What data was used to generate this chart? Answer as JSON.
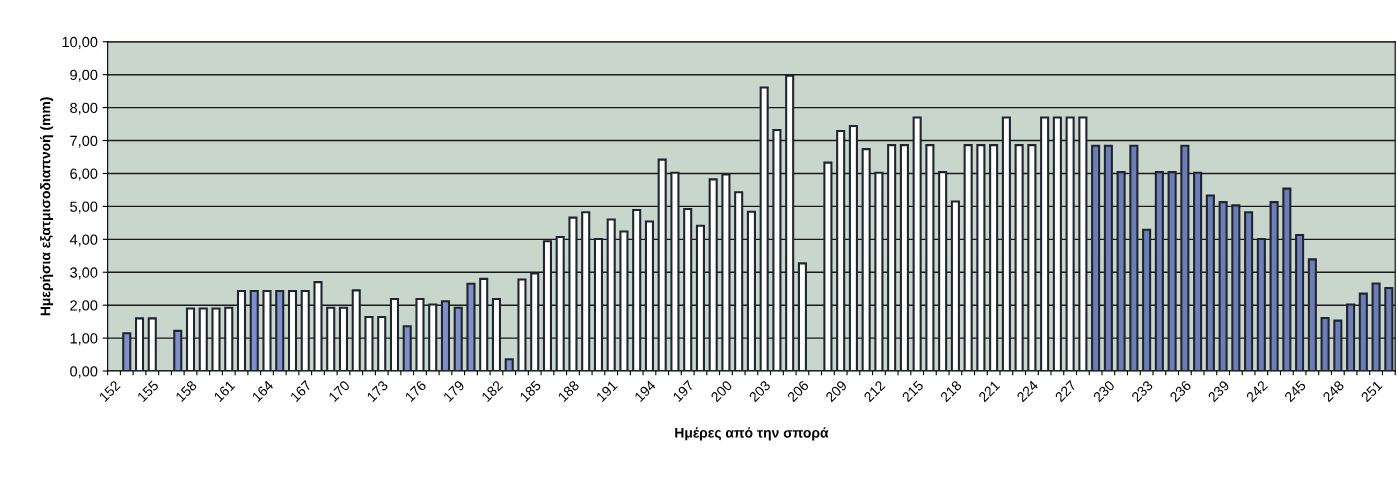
{
  "chart_data": {
    "type": "bar",
    "xlabel": "Ημέρες από την σπορά",
    "ylabel": "Ημερήσια εξατμισοδιαπνοή (mm)",
    "categories": [
      "152",
      null,
      null,
      "155",
      null,
      null,
      "158",
      null,
      null,
      "161",
      null,
      null,
      "164",
      null,
      null,
      "167",
      null,
      null,
      "170",
      null,
      null,
      "173",
      null,
      null,
      "176",
      null,
      null,
      "179",
      null,
      null,
      "182",
      null,
      null,
      "185",
      null,
      null,
      "188",
      null,
      null,
      "191",
      null,
      null,
      "194",
      null,
      null,
      "197",
      null,
      null,
      "200",
      null,
      null,
      "203",
      null,
      null,
      "206",
      null,
      null,
      "209",
      null,
      null,
      "212",
      null,
      null,
      "215",
      null,
      null,
      "218",
      null,
      null,
      "221",
      null,
      null,
      "224",
      null,
      null,
      "227",
      null,
      null,
      "230",
      null,
      null,
      "233",
      null,
      null,
      "236",
      null,
      null,
      "239",
      null,
      null,
      "242",
      null,
      null,
      "245",
      null,
      null,
      "248",
      null,
      null,
      "251",
      null
    ],
    "values": [
      null,
      1.15,
      1.6,
      1.6,
      null,
      1.22,
      1.9,
      1.9,
      1.9,
      1.92,
      2.43,
      2.43,
      2.43,
      2.43,
      2.43,
      2.43,
      2.7,
      1.92,
      1.92,
      2.45,
      1.64,
      1.64,
      2.19,
      1.36,
      2.19,
      2.02,
      2.12,
      1.92,
      2.65,
      2.8,
      2.19,
      0.36,
      2.78,
      2.96,
      3.94,
      4.07,
      4.66,
      4.82,
      4.01,
      4.6,
      4.24,
      4.89,
      4.54,
      6.42,
      6.02,
      4.92,
      4.41,
      5.82,
      5.97,
      5.43,
      4.84,
      8.61,
      7.32,
      8.97,
      3.27,
      null,
      6.33,
      7.29,
      7.44,
      6.74,
      6.02,
      6.86,
      6.86,
      7.7,
      6.86,
      6.04,
      5.15,
      6.86,
      6.86,
      6.86,
      7.7,
      6.86,
      6.86,
      7.7,
      7.7,
      7.7,
      7.7,
      6.84,
      6.84,
      6.04,
      6.84,
      4.29,
      6.04,
      6.04,
      6.84,
      6.02,
      5.33,
      5.13,
      5.03,
      4.82,
      4.01,
      5.13,
      5.54,
      4.13,
      3.39,
      1.61,
      1.53,
      2.02,
      2.35,
      2.66,
      2.52
    ],
    "colors": [
      "#ffffff",
      "#7f8fc9",
      "#ffffff",
      "#ffffff",
      "#ffffff",
      "#7f8fc9",
      "#ffffff",
      "#ffffff",
      "#ffffff",
      "#ffffff",
      "#ffffff",
      "#7f8fc9",
      "#ffffff",
      "#7f8fc9",
      "#ffffff",
      "#ffffff",
      "#ffffff",
      "#ffffff",
      "#ffffff",
      "#ffffff",
      "#ffffff",
      "#ffffff",
      "#ffffff",
      "#7f8fc9",
      "#ffffff",
      "#ffffff",
      "#7f8fc9",
      "#7f8fc9",
      "#7f8fc9",
      "#ffffff",
      "#ffffff",
      "#7f8fc9",
      "#ffffff",
      "#ffffff",
      "#ffffff",
      "#ffffff",
      "#ffffff",
      "#ffffff",
      "#ffffff",
      "#ffffff",
      "#ffffff",
      "#ffffff",
      "#ffffff",
      "#ffffff",
      "#ffffff",
      "#ffffff",
      "#ffffff",
      "#ffffff",
      "#ffffff",
      "#ffffff",
      "#ffffff",
      "#ffffff",
      "#ffffff",
      "#ffffff",
      "#ffffff",
      "#ffffff",
      "#ffffff",
      "#ffffff",
      "#ffffff",
      "#ffffff",
      "#ffffff",
      "#ffffff",
      "#ffffff",
      "#ffffff",
      "#ffffff",
      "#ffffff",
      "#ffffff",
      "#ffffff",
      "#ffffff",
      "#ffffff",
      "#ffffff",
      "#ffffff",
      "#ffffff",
      "#ffffff",
      "#ffffff",
      "#ffffff",
      "#ffffff",
      "#6d7db5",
      "#6d7db5",
      "#6d7db5",
      "#6d7db5",
      "#6d7db5",
      "#6d7db5",
      "#6d7db5",
      "#6d7db5",
      "#6d7db5",
      "#6d7db5",
      "#6d7db5",
      "#6d7db5",
      "#6d7db5",
      "#6d7db5",
      "#6d7db5",
      "#6d7db5",
      "#6d7db5",
      "#6d7db5",
      "#6d7db5",
      "#6d7db5",
      "#6d7db5",
      "#6d7db5",
      "#6d7db5",
      "#6d7db5"
    ],
    "ylim": [
      0,
      10
    ],
    "yticks": [
      {
        "value": 0,
        "label": "0,00"
      },
      {
        "value": 1,
        "label": "1,00"
      },
      {
        "value": 2,
        "label": "2,00"
      },
      {
        "value": 3,
        "label": "3,00"
      },
      {
        "value": 4,
        "label": "4,00"
      },
      {
        "value": 5,
        "label": "5,00"
      },
      {
        "value": 6,
        "label": "6,00"
      },
      {
        "value": 7,
        "label": "7,00"
      },
      {
        "value": 8,
        "label": "8,00"
      },
      {
        "value": 9,
        "label": "9,00"
      },
      {
        "value": 10,
        "label": "10,00"
      }
    ],
    "grid": "y",
    "legend": false
  }
}
